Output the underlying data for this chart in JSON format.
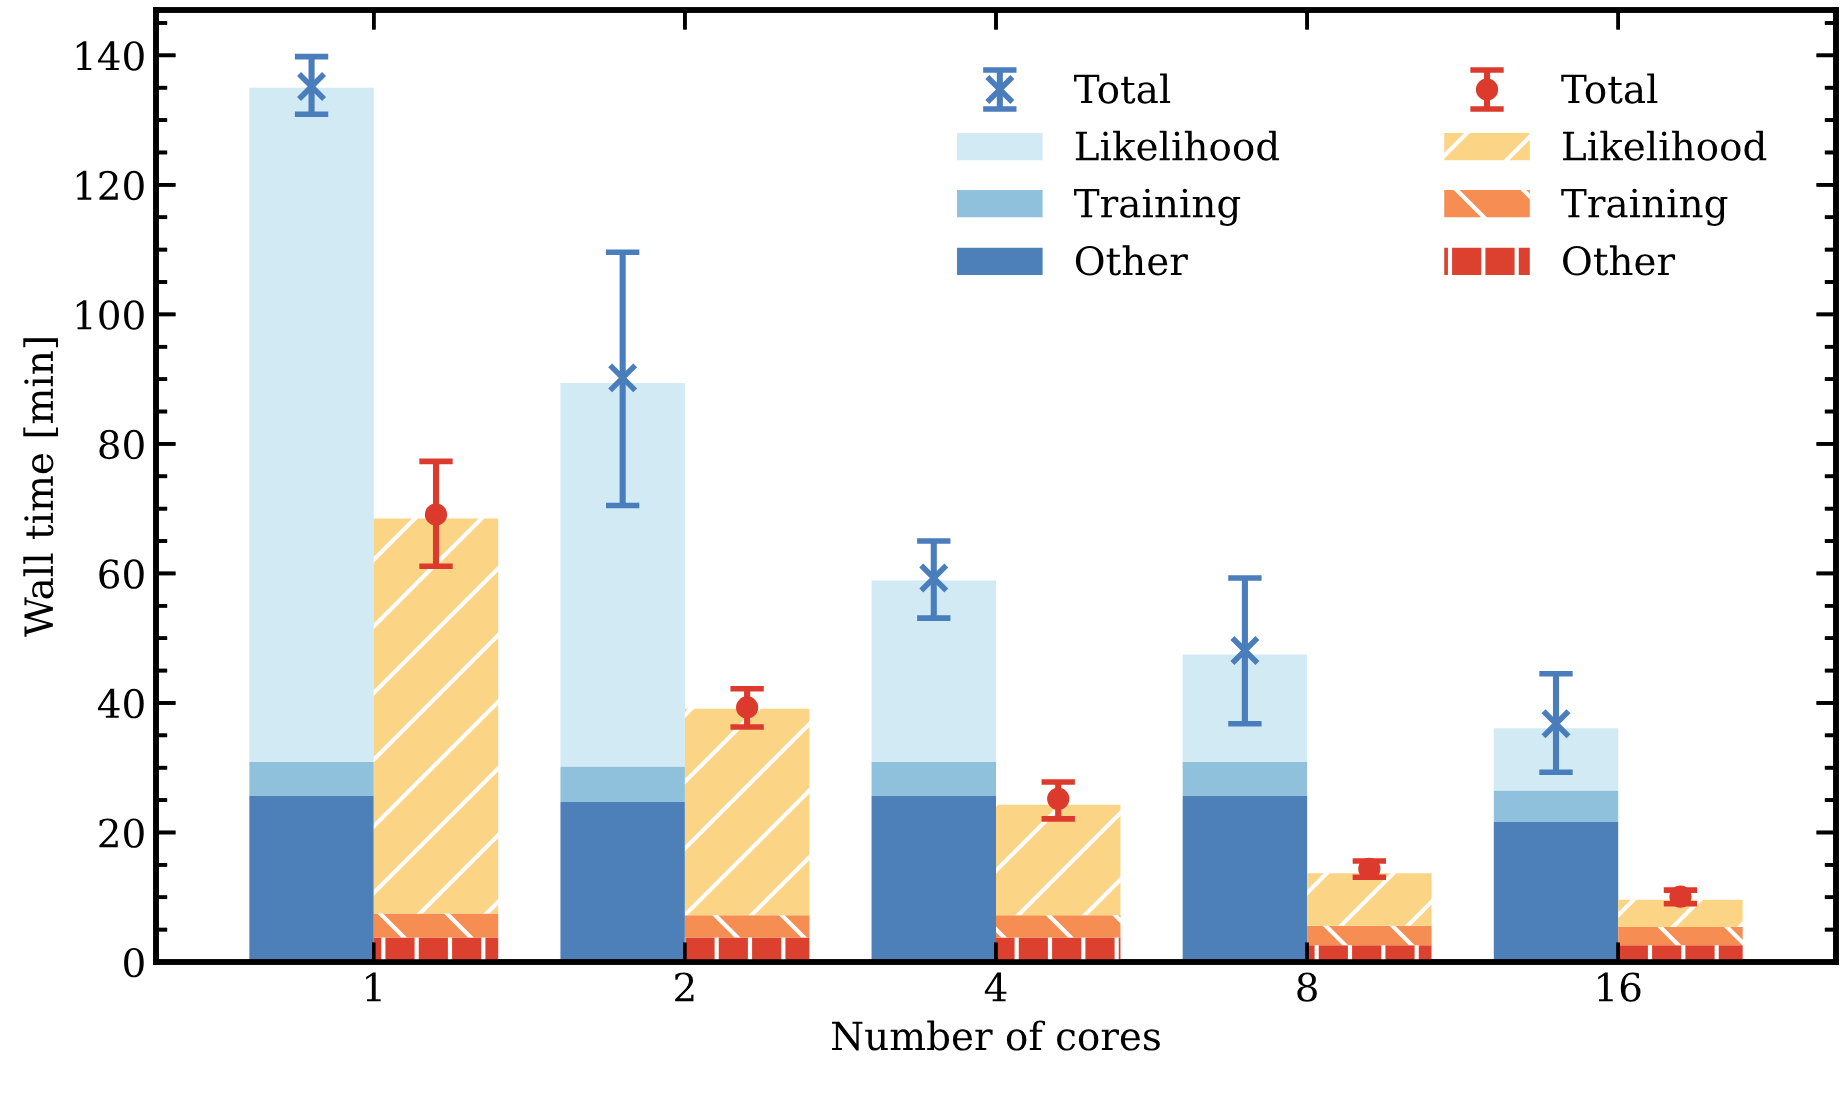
{
  "chart_data": [
    {
      "type": "bar",
      "stacked": true,
      "xlabel": "Number of cores",
      "ylabel": "Wall time [min]",
      "categories": [
        "1",
        "2",
        "4",
        "8",
        "16"
      ],
      "ylim": [
        0,
        147
      ],
      "yticks": [
        0,
        20,
        40,
        60,
        80,
        100,
        120,
        140
      ],
      "grid": false,
      "legend": "top right",
      "series": [
        {
          "name": "Other",
          "color": "#4d80b8",
          "values": [
            25.7,
            24.7,
            25.7,
            25.7,
            21.6
          ]
        },
        {
          "name": "Training",
          "color": "#8fc0dc",
          "values": [
            5.2,
            5.5,
            5.2,
            5.2,
            4.9
          ]
        },
        {
          "name": "Likelihood",
          "color": "#d1eaf3",
          "values": [
            104.1,
            59.2,
            28.0,
            16.6,
            9.6
          ]
        },
        {
          "name": "Total",
          "type": "scatter",
          "marker": "cross",
          "color": "#4a7dbb",
          "x": [
            "1",
            "2",
            "4",
            "8",
            "16"
          ],
          "values": [
            135.2,
            90.2,
            59.3,
            48.1,
            36.8
          ],
          "errors": [
            [
              130.9,
              139.8
            ],
            [
              70.5,
              109.6
            ],
            [
              53.1,
              65.0
            ],
            [
              36.8,
              59.3
            ],
            [
              29.3,
              44.5
            ]
          ]
        }
      ]
    },
    {
      "type": "bar",
      "stacked": true,
      "tick_labels": false,
      "categories": [
        "1",
        "2",
        "4",
        "8",
        "16"
      ],
      "ylim": [
        0,
        147
      ],
      "yticks": [
        0,
        20,
        40,
        60,
        80,
        100,
        120,
        140
      ],
      "grid": false,
      "legend": "top right",
      "series": [
        {
          "name": "Other",
          "color": "#dc402f",
          "values": [
            3.8,
            3.8,
            3.8,
            2.6,
            2.6
          ]
        },
        {
          "name": "Training",
          "color": "#f68d52",
          "values": [
            3.7,
            3.4,
            3.4,
            3.0,
            2.8
          ]
        },
        {
          "name": "Likelihood",
          "color": "#fcd485",
          "values": [
            61.0,
            31.9,
            17.1,
            8.1,
            4.2
          ]
        },
        {
          "name": "Total",
          "type": "scatter",
          "marker": "circle",
          "color": "#dc3a2c",
          "x": [
            "1",
            "2",
            "4",
            "8",
            "16"
          ],
          "values": [
            69.1,
            39.3,
            25.2,
            14.4,
            10.1
          ],
          "errors": [
            [
              61.1,
              77.3
            ],
            [
              36.3,
              42.2
            ],
            [
              22.1,
              27.8
            ],
            [
              13.1,
              15.6
            ],
            [
              9.0,
              11.1
            ]
          ]
        }
      ]
    }
  ]
}
